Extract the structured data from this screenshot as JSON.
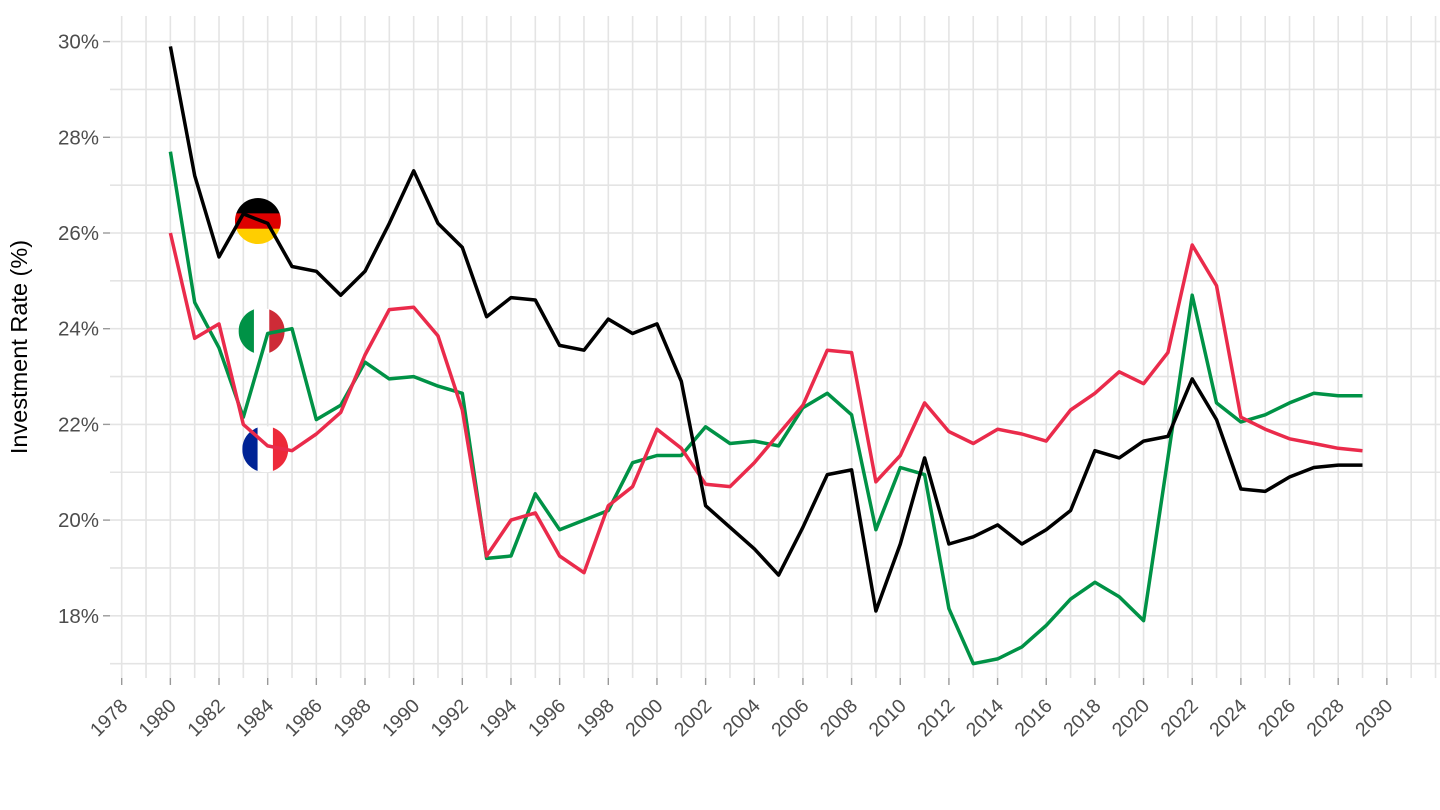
{
  "chart_data": {
    "type": "line",
    "title": "",
    "xlabel": "",
    "ylabel": "Investment Rate (%)",
    "grid": "on",
    "legend": "none (flag icons mark each series near 1984)",
    "x_start_year": 1980,
    "x": [
      1980,
      1981,
      1982,
      1983,
      1984,
      1985,
      1986,
      1987,
      1988,
      1989,
      1990,
      1991,
      1992,
      1993,
      1994,
      1995,
      1996,
      1997,
      1998,
      1999,
      2000,
      2001,
      2002,
      2003,
      2004,
      2005,
      2006,
      2007,
      2008,
      2009,
      2010,
      2011,
      2012,
      2013,
      2014,
      2015,
      2016,
      2017,
      2018,
      2019,
      2020,
      2021,
      2022,
      2023,
      2024,
      2025,
      2026,
      2027,
      2028,
      2029
    ],
    "x_tick_labels": [
      "1978",
      "1980",
      "1982",
      "1984",
      "1986",
      "1988",
      "1990",
      "1992",
      "1994",
      "1996",
      "1998",
      "2000",
      "2002",
      "2004",
      "2006",
      "2008",
      "2010",
      "2012",
      "2014",
      "2016",
      "2018",
      "2020",
      "2022",
      "2024",
      "2026",
      "2028",
      "2030"
    ],
    "x_tick_years": [
      1978,
      1980,
      1982,
      1984,
      1986,
      1988,
      1990,
      1992,
      1994,
      1996,
      1998,
      2000,
      2002,
      2004,
      2006,
      2008,
      2010,
      2012,
      2014,
      2016,
      2018,
      2020,
      2022,
      2024,
      2026,
      2028,
      2030
    ],
    "y_tick_labels": [
      "18%",
      "20%",
      "22%",
      "24%",
      "26%",
      "28%",
      "30%"
    ],
    "y_tick_values": [
      18,
      20,
      22,
      24,
      26,
      28,
      30
    ],
    "ylim": [
      16.7,
      30.5
    ],
    "xlim_years": [
      1977.5,
      2032
    ],
    "minor_grid_step_y_percent": 1,
    "minor_grid_step_x_years": 1,
    "series": [
      {
        "name": "Italy",
        "color": "#009246",
        "values": [
          27.7,
          24.55,
          23.6,
          22.15,
          23.9,
          24.0,
          22.1,
          22.4,
          23.3,
          22.95,
          23.0,
          22.8,
          22.65,
          19.2,
          19.25,
          20.55,
          19.8,
          20.0,
          20.2,
          21.2,
          21.35,
          21.35,
          21.95,
          21.6,
          21.65,
          21.55,
          22.35,
          22.65,
          22.2,
          19.8,
          21.1,
          20.95,
          18.15,
          17.0,
          17.1,
          17.35,
          17.8,
          18.35,
          18.7,
          18.4,
          17.9,
          21.3,
          24.7,
          22.45,
          22.05,
          22.2,
          22.45,
          22.65,
          22.6,
          22.6
        ]
      },
      {
        "name": "France",
        "color": "#EA2B4B",
        "values": [
          26.0,
          23.8,
          24.1,
          22.0,
          21.55,
          21.45,
          21.8,
          22.25,
          23.45,
          24.4,
          24.45,
          23.85,
          22.3,
          19.25,
          20.0,
          20.15,
          19.25,
          18.9,
          20.3,
          20.7,
          21.9,
          21.5,
          20.75,
          20.7,
          21.2,
          21.8,
          22.4,
          23.55,
          23.5,
          20.8,
          21.35,
          22.45,
          21.85,
          21.6,
          21.9,
          21.8,
          21.65,
          22.3,
          22.65,
          23.1,
          22.85,
          23.5,
          25.75,
          24.9,
          22.15,
          21.9,
          21.7,
          21.6,
          21.5,
          21.45
        ]
      },
      {
        "name": "Germany",
        "color": "#000000",
        "values": [
          29.9,
          27.2,
          25.5,
          26.4,
          26.2,
          25.3,
          25.2,
          24.7,
          25.2,
          26.2,
          27.3,
          26.2,
          25.7,
          24.25,
          24.65,
          24.6,
          23.65,
          23.55,
          24.2,
          23.9,
          24.1,
          22.9,
          20.3,
          19.85,
          19.4,
          18.85,
          19.85,
          20.95,
          21.05,
          18.1,
          19.5,
          21.3,
          19.5,
          19.65,
          19.9,
          19.5,
          19.8,
          20.2,
          21.45,
          21.3,
          21.65,
          21.75,
          22.95,
          22.1,
          20.65,
          20.6,
          20.9,
          21.1,
          21.15,
          21.15
        ]
      }
    ],
    "flag_markers": [
      {
        "country": "Germany",
        "icon": "germany-flag-icon",
        "orientation": "horizontal",
        "stripe_colors": [
          "#000000",
          "#DD0000",
          "#FFCE00"
        ],
        "at_year": 1983.6,
        "at_value": 26.25
      },
      {
        "country": "Italy",
        "icon": "italy-flag-icon",
        "orientation": "vertical",
        "stripe_colors": [
          "#009246",
          "#FFFFFF",
          "#CE2B37"
        ],
        "at_year": 1983.75,
        "at_value": 23.95
      },
      {
        "country": "France",
        "icon": "france-flag-icon",
        "orientation": "vertical",
        "stripe_colors": [
          "#002395",
          "#FFFFFF",
          "#ED2939"
        ],
        "at_year": 1983.9,
        "at_value": 21.48
      }
    ],
    "style_colors": {
      "grid": "#E4E4E4",
      "axis_text": "#4D4D4D",
      "axis_title": "#000000",
      "tick_mark": "#999999",
      "background": "#FFFFFF"
    }
  }
}
